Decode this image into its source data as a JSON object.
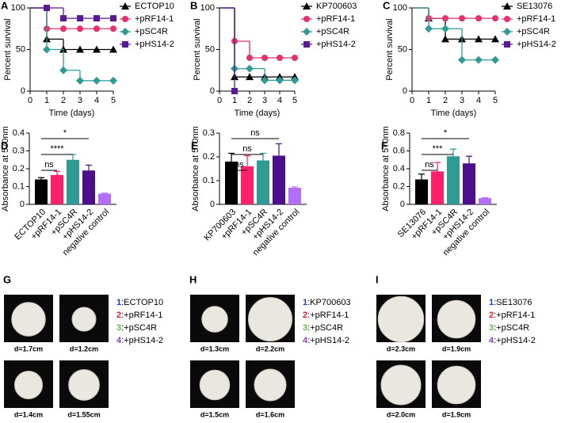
{
  "chart_data": [
    {
      "type": "step",
      "panel_label": "A",
      "y_label": "Percent survival",
      "x_label": "Time (days)",
      "x": [
        0,
        1,
        2,
        3,
        4,
        5
      ],
      "xlim": [
        0,
        5
      ],
      "xticks": [
        0,
        1,
        2,
        3,
        4,
        5
      ],
      "ylim": [
        0,
        100
      ],
      "yticks": [
        0,
        50,
        100
      ],
      "series": [
        {
          "name": "ECTOP10",
          "color": "#000000",
          "marker": "triangle",
          "values": [
            100,
            62.5,
            50,
            50,
            50,
            50
          ]
        },
        {
          "name": "+pRF14-1",
          "color": "#e8306e",
          "marker": "circle",
          "values": [
            100,
            75,
            75,
            75,
            75,
            75
          ]
        },
        {
          "name": "+pSC4R",
          "color": "#2e9c94",
          "marker": "diamond",
          "values": [
            100,
            50,
            25,
            12.5,
            12.5,
            12.5
          ]
        },
        {
          "name": "+pHS14-2",
          "color": "#5a1a96",
          "marker": "square",
          "values": [
            100,
            100,
            87.5,
            87.5,
            87.5,
            87.5
          ]
        }
      ]
    },
    {
      "type": "step",
      "panel_label": "B",
      "y_label": "Percent survival",
      "x_label": "Time (days)",
      "x": [
        0,
        1,
        2,
        3,
        4,
        5
      ],
      "xlim": [
        0,
        5
      ],
      "xticks": [
        0,
        1,
        2,
        3,
        4,
        5
      ],
      "ylim": [
        0,
        100
      ],
      "yticks": [
        0,
        50,
        100
      ],
      "series": [
        {
          "name": "KP700603",
          "color": "#000000",
          "marker": "triangle",
          "values": [
            100,
            17,
            17,
            17,
            17,
            17
          ]
        },
        {
          "name": "+pRF14-1",
          "color": "#e8306e",
          "marker": "circle",
          "values": [
            100,
            60,
            40,
            40,
            40,
            40
          ]
        },
        {
          "name": "+pSC4R",
          "color": "#2e9c94",
          "marker": "diamond",
          "values": [
            100,
            27,
            27,
            13,
            13,
            13
          ]
        },
        {
          "name": "+pHS14-2",
          "color": "#5a1a96",
          "marker": "square",
          "values": [
            100,
            0,
            null,
            null,
            null,
            null
          ]
        }
      ]
    },
    {
      "type": "step",
      "panel_label": "C",
      "y_label": "Percent survival",
      "x_label": "Time (days)",
      "x": [
        0,
        1,
        2,
        3,
        4,
        5
      ],
      "xlim": [
        0,
        5
      ],
      "xticks": [
        0,
        1,
        2,
        3,
        4,
        5
      ],
      "ylim": [
        0,
        100
      ],
      "yticks": [
        0,
        50,
        100
      ],
      "series": [
        {
          "name": "SE13076",
          "color": "#000000",
          "marker": "triangle",
          "values": [
            100,
            87.5,
            62.5,
            62.5,
            62.5,
            62.5
          ]
        },
        {
          "name": "+pRF14-1",
          "color": "#e8306e",
          "marker": "circle",
          "values": [
            100,
            87.5,
            87.5,
            87.5,
            87.5,
            87.5
          ]
        },
        {
          "name": "+pSC4R",
          "color": "#2e9c94",
          "marker": "diamond",
          "values": [
            100,
            75,
            75,
            37.5,
            37.5,
            37.5
          ]
        },
        {
          "name": "+pHS14-2",
          "color": "#5a1a96",
          "marker": "square",
          "values": [
            100,
            null,
            null,
            null,
            null,
            null
          ]
        }
      ]
    },
    {
      "type": "bar",
      "panel_label": "D",
      "y_label": "Absorbance at 570nm",
      "categories": [
        "ECTOP10",
        "+pRF14-1",
        "+pSC4R",
        "+pHS14-2",
        "negative control"
      ],
      "values": [
        0.14,
        0.165,
        0.25,
        0.19,
        0.06
      ],
      "errors": [
        0.01,
        0.02,
        0.03,
        0.03,
        0.003
      ],
      "colors": [
        "#000000",
        "#ff1f6a",
        "#2e9c94",
        "#4b0f8c",
        "#b46eff"
      ],
      "ylim": [
        0,
        0.4
      ],
      "yticks": [
        0,
        0.1,
        0.2,
        0.3,
        0.4
      ],
      "comparisons": [
        {
          "from": "ECTOP10",
          "to": "+pRF14-1",
          "label": "ns"
        },
        {
          "from": "ECTOP10",
          "to": "+pSC4R",
          "label": "****"
        },
        {
          "from": "ECTOP10",
          "to": "+pHS14-2",
          "label": "*"
        }
      ]
    },
    {
      "type": "bar",
      "panel_label": "E",
      "y_label": "Absorbance at 570nm",
      "categories": [
        "KP700603",
        "+pRF14-1",
        "+pSC4R",
        "+pHS14-2",
        "negative control"
      ],
      "values": [
        0.18,
        0.16,
        0.185,
        0.205,
        0.07
      ],
      "errors": [
        0.035,
        0.045,
        0.03,
        0.05,
        0.004
      ],
      "colors": [
        "#000000",
        "#ff1f6a",
        "#2e9c94",
        "#4b0f8c",
        "#b46eff"
      ],
      "ylim": [
        0,
        0.3
      ],
      "yticks": [
        0,
        0.1,
        0.2,
        0.3
      ],
      "comparisons": [
        {
          "from": "KP700603",
          "to": "+pRF14-1",
          "label": "ns"
        },
        {
          "from": "KP700603",
          "to": "+pSC4R",
          "label": "ns"
        },
        {
          "from": "KP700603",
          "to": "+pHS14-2",
          "label": "ns"
        }
      ]
    },
    {
      "type": "bar",
      "panel_label": "F",
      "y_label": "Absorbance at 570nm",
      "categories": [
        "SE13076",
        "+pRF14-1",
        "+pSC4R",
        "+pHS14-2",
        "negative control"
      ],
      "values": [
        0.28,
        0.37,
        0.54,
        0.46,
        0.07
      ],
      "errors": [
        0.06,
        0.1,
        0.08,
        0.08,
        0.005
      ],
      "colors": [
        "#000000",
        "#ff1f6a",
        "#2e9c94",
        "#4b0f8c",
        "#b46eff"
      ],
      "ylim": [
        0,
        0.8
      ],
      "yticks": [
        0,
        0.2,
        0.4,
        0.6,
        0.8
      ],
      "comparisons": [
        {
          "from": "SE13076",
          "to": "+pRF14-1",
          "label": "ns"
        },
        {
          "from": "SE13076",
          "to": "+pSC4R",
          "label": "***"
        },
        {
          "from": "SE13076",
          "to": "+pHS14-2",
          "label": "*"
        }
      ]
    }
  ],
  "legend_colors": [
    "#1f3fd6",
    "#e0202a",
    "#5cc23a",
    "#8a3fc9"
  ],
  "colony_panels": [
    {
      "label": "G",
      "items": [
        {
          "number": "1",
          "name": ":ECTOP10",
          "diameter": 1.7,
          "diameter_label": "d=1.7cm"
        },
        {
          "number": "2",
          "name": ":+pRF14-1",
          "diameter": 1.2,
          "diameter_label": "d=1.2cm"
        },
        {
          "number": "3",
          "name": ":+pSC4R",
          "diameter": 1.4,
          "diameter_label": "d=1.4cm"
        },
        {
          "number": "4",
          "name": ":+pHS14-2",
          "diameter": 1.55,
          "diameter_label": "d=1.55cm"
        }
      ]
    },
    {
      "label": "H",
      "items": [
        {
          "number": "1",
          "name": ":KP700603",
          "diameter": 1.3,
          "diameter_label": "d=1.3cm"
        },
        {
          "number": "2",
          "name": ":+pRF14-1",
          "diameter": 2.2,
          "diameter_label": "d=2.2cm"
        },
        {
          "number": "3",
          "name": ":+pSC4R",
          "diameter": 1.5,
          "diameter_label": "d=1.5cm"
        },
        {
          "number": "4",
          "name": ":+pHS14-2",
          "diameter": 1.6,
          "diameter_label": "d=1.6cm"
        }
      ]
    },
    {
      "label": "I",
      "items": [
        {
          "number": "1",
          "name": ":SE13076",
          "diameter": 2.3,
          "diameter_label": "d=2.3cm"
        },
        {
          "number": "2",
          "name": ":+pRF14-1",
          "diameter": 1.9,
          "diameter_label": "d=1.9cm"
        },
        {
          "number": "3",
          "name": ":+pSC4R",
          "diameter": 2.0,
          "diameter_label": "d=2.0cm"
        },
        {
          "number": "4",
          "name": ":+pHS14-2",
          "diameter": 1.9,
          "diameter_label": "d=1.9cm"
        }
      ]
    }
  ]
}
